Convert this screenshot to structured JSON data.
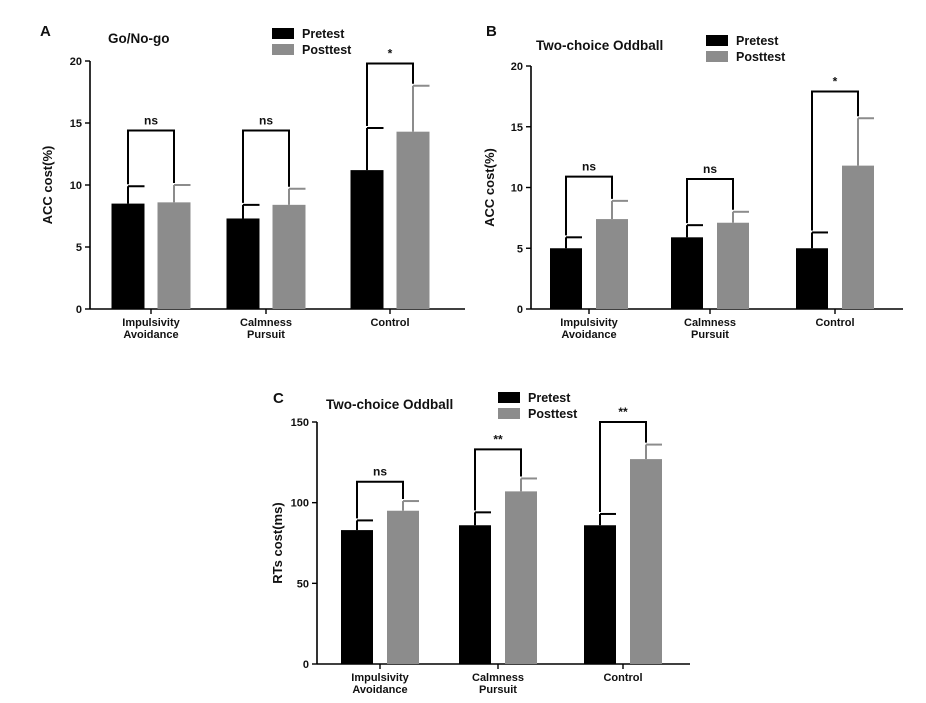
{
  "chart_data": [
    {
      "panel_letter": "A",
      "type": "bar",
      "title": "Go/No-go",
      "ylabel": "ACC cost(%)",
      "xlabel": "",
      "ylim": [
        0,
        20
      ],
      "yticks": [
        0,
        5,
        10,
        15,
        20
      ],
      "categories": [
        [
          "Impulsivity",
          "Avoidance"
        ],
        [
          "Calmness",
          "Pursuit"
        ],
        [
          "Control"
        ]
      ],
      "series": [
        {
          "name": "Pretest",
          "color": "#000000",
          "values": [
            8.5,
            7.3,
            11.2
          ],
          "errors": [
            1.4,
            1.1,
            3.4
          ]
        },
        {
          "name": "Posttest",
          "color": "#8c8c8c",
          "values": [
            8.6,
            8.4,
            14.3
          ],
          "errors": [
            1.4,
            1.3,
            3.7
          ]
        }
      ],
      "significance": [
        {
          "category": 0,
          "label": "ns",
          "bracket_y": 14.4
        },
        {
          "category": 1,
          "label": "ns",
          "bracket_y": 14.4
        },
        {
          "category": 2,
          "label": "*",
          "bracket_y": 19.8
        }
      ],
      "legend_placement": "top-center",
      "grid": false
    },
    {
      "panel_letter": "B",
      "type": "bar",
      "title": "Two-choice Oddball",
      "ylabel": "ACC cost(%)",
      "xlabel": "",
      "ylim": [
        0,
        20
      ],
      "yticks": [
        0,
        5,
        10,
        15,
        20
      ],
      "categories": [
        [
          "Impulsivity",
          "Avoidance"
        ],
        [
          "Calmness",
          "Pursuit"
        ],
        [
          "Control"
        ]
      ],
      "series": [
        {
          "name": "Pretest",
          "color": "#000000",
          "values": [
            5.0,
            5.9,
            5.0
          ],
          "errors": [
            0.9,
            1.0,
            1.3
          ]
        },
        {
          "name": "Posttest",
          "color": "#8c8c8c",
          "values": [
            7.4,
            7.1,
            11.8
          ],
          "errors": [
            1.5,
            0.9,
            3.9
          ]
        }
      ],
      "significance": [
        {
          "category": 0,
          "label": "ns",
          "bracket_y": 10.9
        },
        {
          "category": 1,
          "label": "ns",
          "bracket_y": 10.7
        },
        {
          "category": 2,
          "label": "*",
          "bracket_y": 17.9
        }
      ],
      "legend_placement": "top-right",
      "grid": false
    },
    {
      "panel_letter": "C",
      "type": "bar",
      "title": "Two-choice Oddball",
      "ylabel": "RTs cost(ms)",
      "xlabel": "",
      "ylim": [
        0,
        150
      ],
      "yticks": [
        0,
        50,
        100,
        150
      ],
      "categories": [
        [
          "Impulsivity",
          "Avoidance"
        ],
        [
          "Calmness",
          "Pursuit"
        ],
        [
          "Control"
        ]
      ],
      "series": [
        {
          "name": "Pretest",
          "color": "#000000",
          "values": [
            83,
            86,
            86
          ],
          "errors": [
            6,
            8,
            7
          ]
        },
        {
          "name": "Posttest",
          "color": "#8c8c8c",
          "values": [
            95,
            107,
            127
          ],
          "errors": [
            6,
            8,
            9
          ]
        }
      ],
      "significance": [
        {
          "category": 0,
          "label": "ns",
          "bracket_y": 113
        },
        {
          "category": 1,
          "label": "**",
          "bracket_y": 133
        },
        {
          "category": 2,
          "label": "**",
          "bracket_y": 150
        }
      ],
      "legend_placement": "top-right",
      "grid": false
    }
  ]
}
